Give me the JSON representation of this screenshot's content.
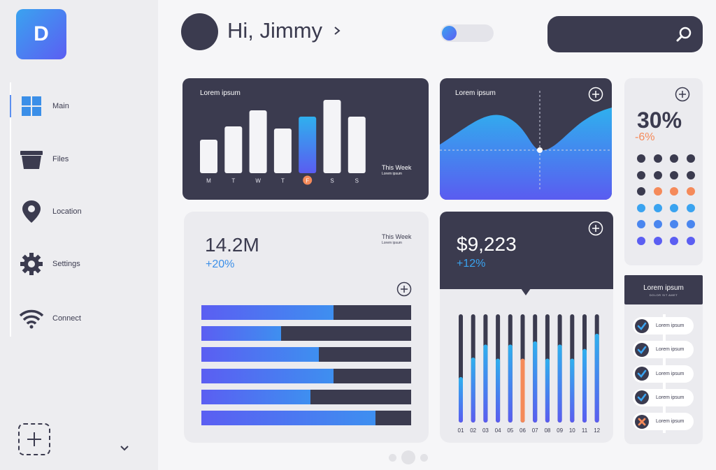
{
  "sidebar": {
    "logo_letter": "D",
    "items": [
      {
        "label": "Main",
        "icon": "grid-icon"
      },
      {
        "label": "Files",
        "icon": "folder-icon"
      },
      {
        "label": "Location",
        "icon": "location-pin-icon"
      },
      {
        "label": "Settings",
        "icon": "gear-icon"
      },
      {
        "label": "Connect",
        "icon": "wifi-icon"
      }
    ]
  },
  "header": {
    "greeting": "Hi, Jimmy",
    "toggle_on": false
  },
  "colors": {
    "dark": "#3b3b4f",
    "accent_blue": "#3aa3f0",
    "accent_purple": "#5b5ef2",
    "accent_orange": "#f58a5a",
    "panel_light": "#ebebef"
  },
  "weekly_card": {
    "title": "Lorem ipsum",
    "caption": "This Week",
    "caption_sub": "Lorem ipsum",
    "highlighted_day": "F",
    "chart_data": {
      "type": "bar",
      "categories": [
        "M",
        "T",
        "W",
        "T",
        "F",
        "S",
        "S"
      ],
      "values": [
        48,
        67,
        90,
        64,
        81,
        105,
        81
      ],
      "highlight_index": 4
    }
  },
  "wave_card": {
    "title": "Lorem ipsum"
  },
  "percent_card": {
    "value": "30%",
    "delta": "-6%",
    "dot_rows": [
      [
        "dark",
        "dark",
        "dark",
        "dark"
      ],
      [
        "dark",
        "dark",
        "dark",
        "dark"
      ],
      [
        "dark",
        "orange",
        "orange",
        "orange"
      ],
      [
        "blue",
        "blue",
        "blue",
        "blue"
      ],
      [
        "mid",
        "mid",
        "mid",
        "mid"
      ],
      [
        "purple",
        "purple",
        "purple",
        "purple"
      ]
    ]
  },
  "stats_card": {
    "value": "14.2M",
    "delta": "+20%",
    "caption": "This Week",
    "caption_sub": "Lorem ipsum",
    "chart_data": {
      "type": "bar",
      "orientation": "horizontal",
      "values": [
        0.63,
        0.38,
        0.56,
        0.63,
        0.52,
        0.83
      ]
    }
  },
  "money_card": {
    "value": "$9,223",
    "delta": "+12%",
    "chart_data": {
      "type": "bar",
      "categories": [
        "01",
        "02",
        "03",
        "04",
        "05",
        "06",
        "07",
        "08",
        "09",
        "10",
        "11",
        "12"
      ],
      "values": [
        0.42,
        0.6,
        0.72,
        0.59,
        0.72,
        0.59,
        0.75,
        0.59,
        0.72,
        0.59,
        0.68,
        0.82
      ],
      "highlight_index": 5
    }
  },
  "checklist_card": {
    "title": "Lorem ipsum",
    "subtitle": "DOLOR SIT AMET",
    "items": [
      {
        "label": "Lorem ipsum",
        "state": "done"
      },
      {
        "label": "Lorem ipsum",
        "state": "done"
      },
      {
        "label": "Lorem ipsum",
        "state": "done"
      },
      {
        "label": "Lorem ipsum",
        "state": "done"
      },
      {
        "label": "Lorem ipsum",
        "state": "failed"
      }
    ]
  },
  "pager": {
    "active_index": 1,
    "count": 3
  }
}
